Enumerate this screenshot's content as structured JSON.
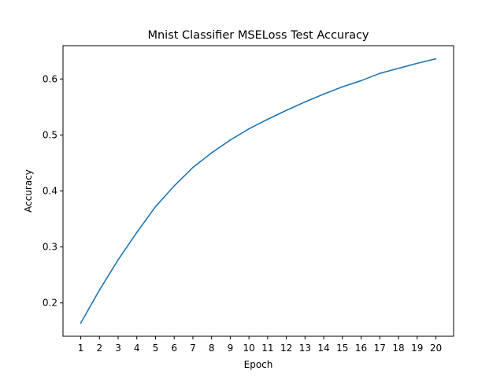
{
  "chart_data": {
    "type": "line",
    "title": "Mnist Classifier MSELoss Test Accuracy",
    "xlabel": "Epoch",
    "ylabel": "Accuracy",
    "x": [
      1,
      2,
      3,
      4,
      5,
      6,
      7,
      8,
      9,
      10,
      11,
      12,
      13,
      14,
      15,
      16,
      17,
      18,
      19,
      20
    ],
    "xticks": [
      "1",
      "2",
      "3",
      "4",
      "5",
      "6",
      "7",
      "8",
      "9",
      "10",
      "11",
      "12",
      "13",
      "14",
      "15",
      "16",
      "17",
      "18",
      "19",
      "20"
    ],
    "yticks": [
      "0.2",
      "0.3",
      "0.4",
      "0.5",
      "0.6"
    ],
    "ytick_values": [
      0.2,
      0.3,
      0.4,
      0.5,
      0.6
    ],
    "xlim": [
      0.05,
      20.95
    ],
    "ylim": [
      0.1405,
      0.6595
    ],
    "grid": false,
    "series": [
      {
        "color": "#1f77b4",
        "values": [
          0.164,
          0.223,
          0.277,
          0.326,
          0.372,
          0.409,
          0.442,
          0.468,
          0.491,
          0.511,
          0.528,
          0.544,
          0.559,
          0.573,
          0.586,
          0.597,
          0.61,
          0.619,
          0.628,
          0.636
        ]
      }
    ]
  }
}
